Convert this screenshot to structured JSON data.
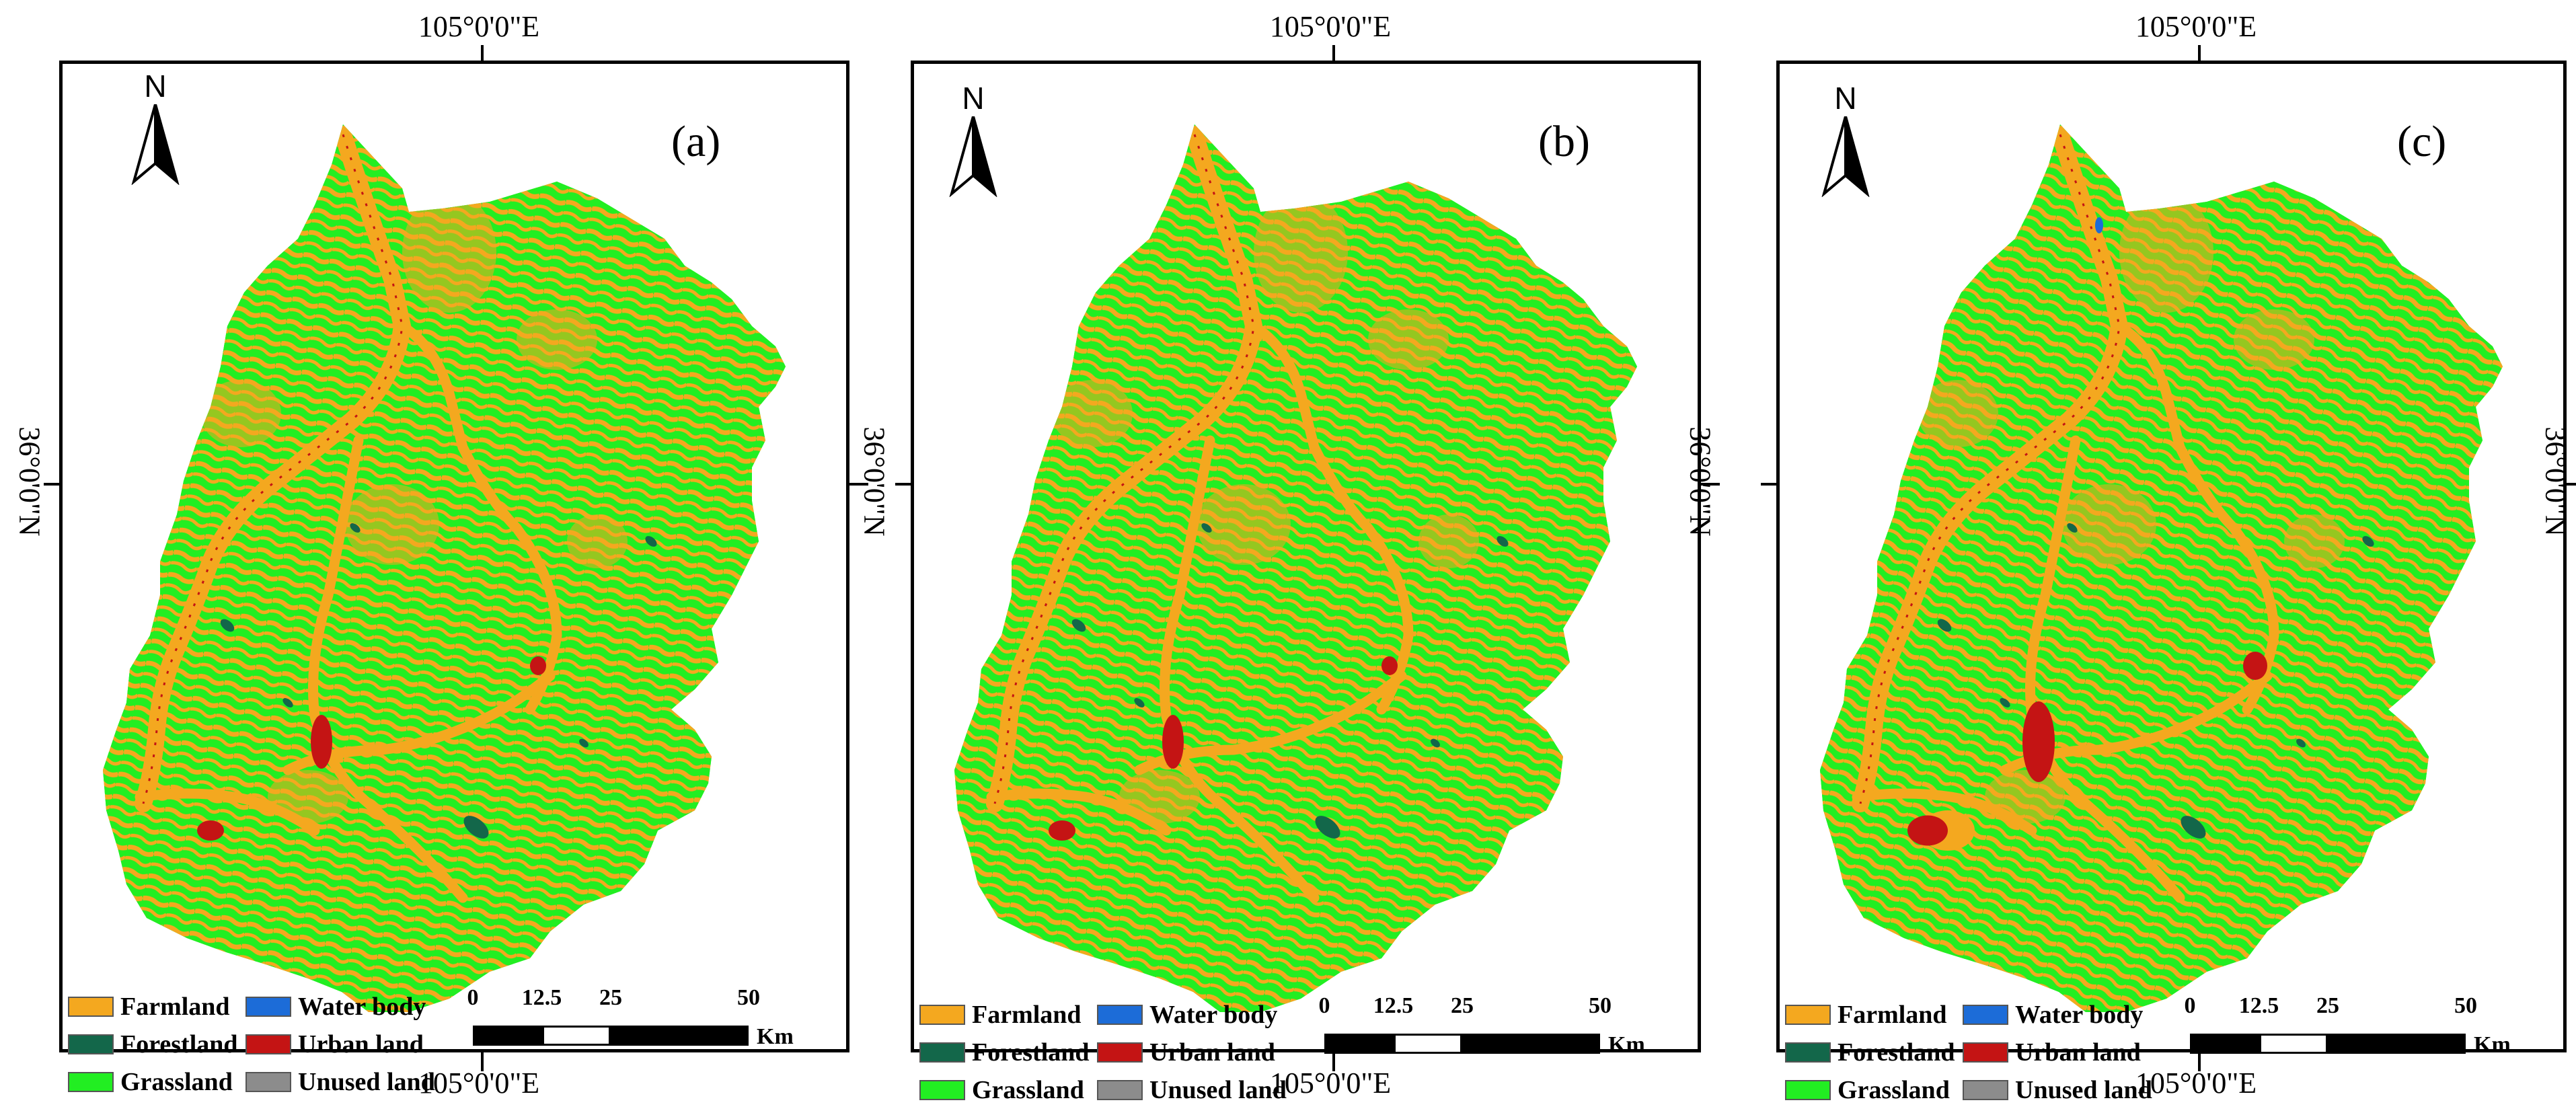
{
  "colors": {
    "farmland": "#f4a81f",
    "forestland": "#13674a",
    "grassland": "#22ee22",
    "water_body": "#1c6cd8",
    "urban_land": "#c41414",
    "unused_land": "#8c8c8c"
  },
  "longitude_label": "105°0'0\"E",
  "latitude_label": "36°0'0\"N",
  "north_label": "N",
  "legend": [
    {
      "key": "farmland",
      "label": "Farmland"
    },
    {
      "key": "water_body",
      "label": "Water body"
    },
    {
      "key": "forestland",
      "label": "Forestland"
    },
    {
      "key": "urban_land",
      "label": "Urban land"
    },
    {
      "key": "grassland",
      "label": "Grassland"
    },
    {
      "key": "unused_land",
      "label": "Unused land"
    }
  ],
  "scale_bar": {
    "ticks": [
      "0",
      "12.5",
      "25",
      "50"
    ],
    "unit": "Km"
  },
  "panels": [
    {
      "label": "(a)"
    },
    {
      "label": "(b)"
    },
    {
      "label": "(c)"
    }
  ]
}
